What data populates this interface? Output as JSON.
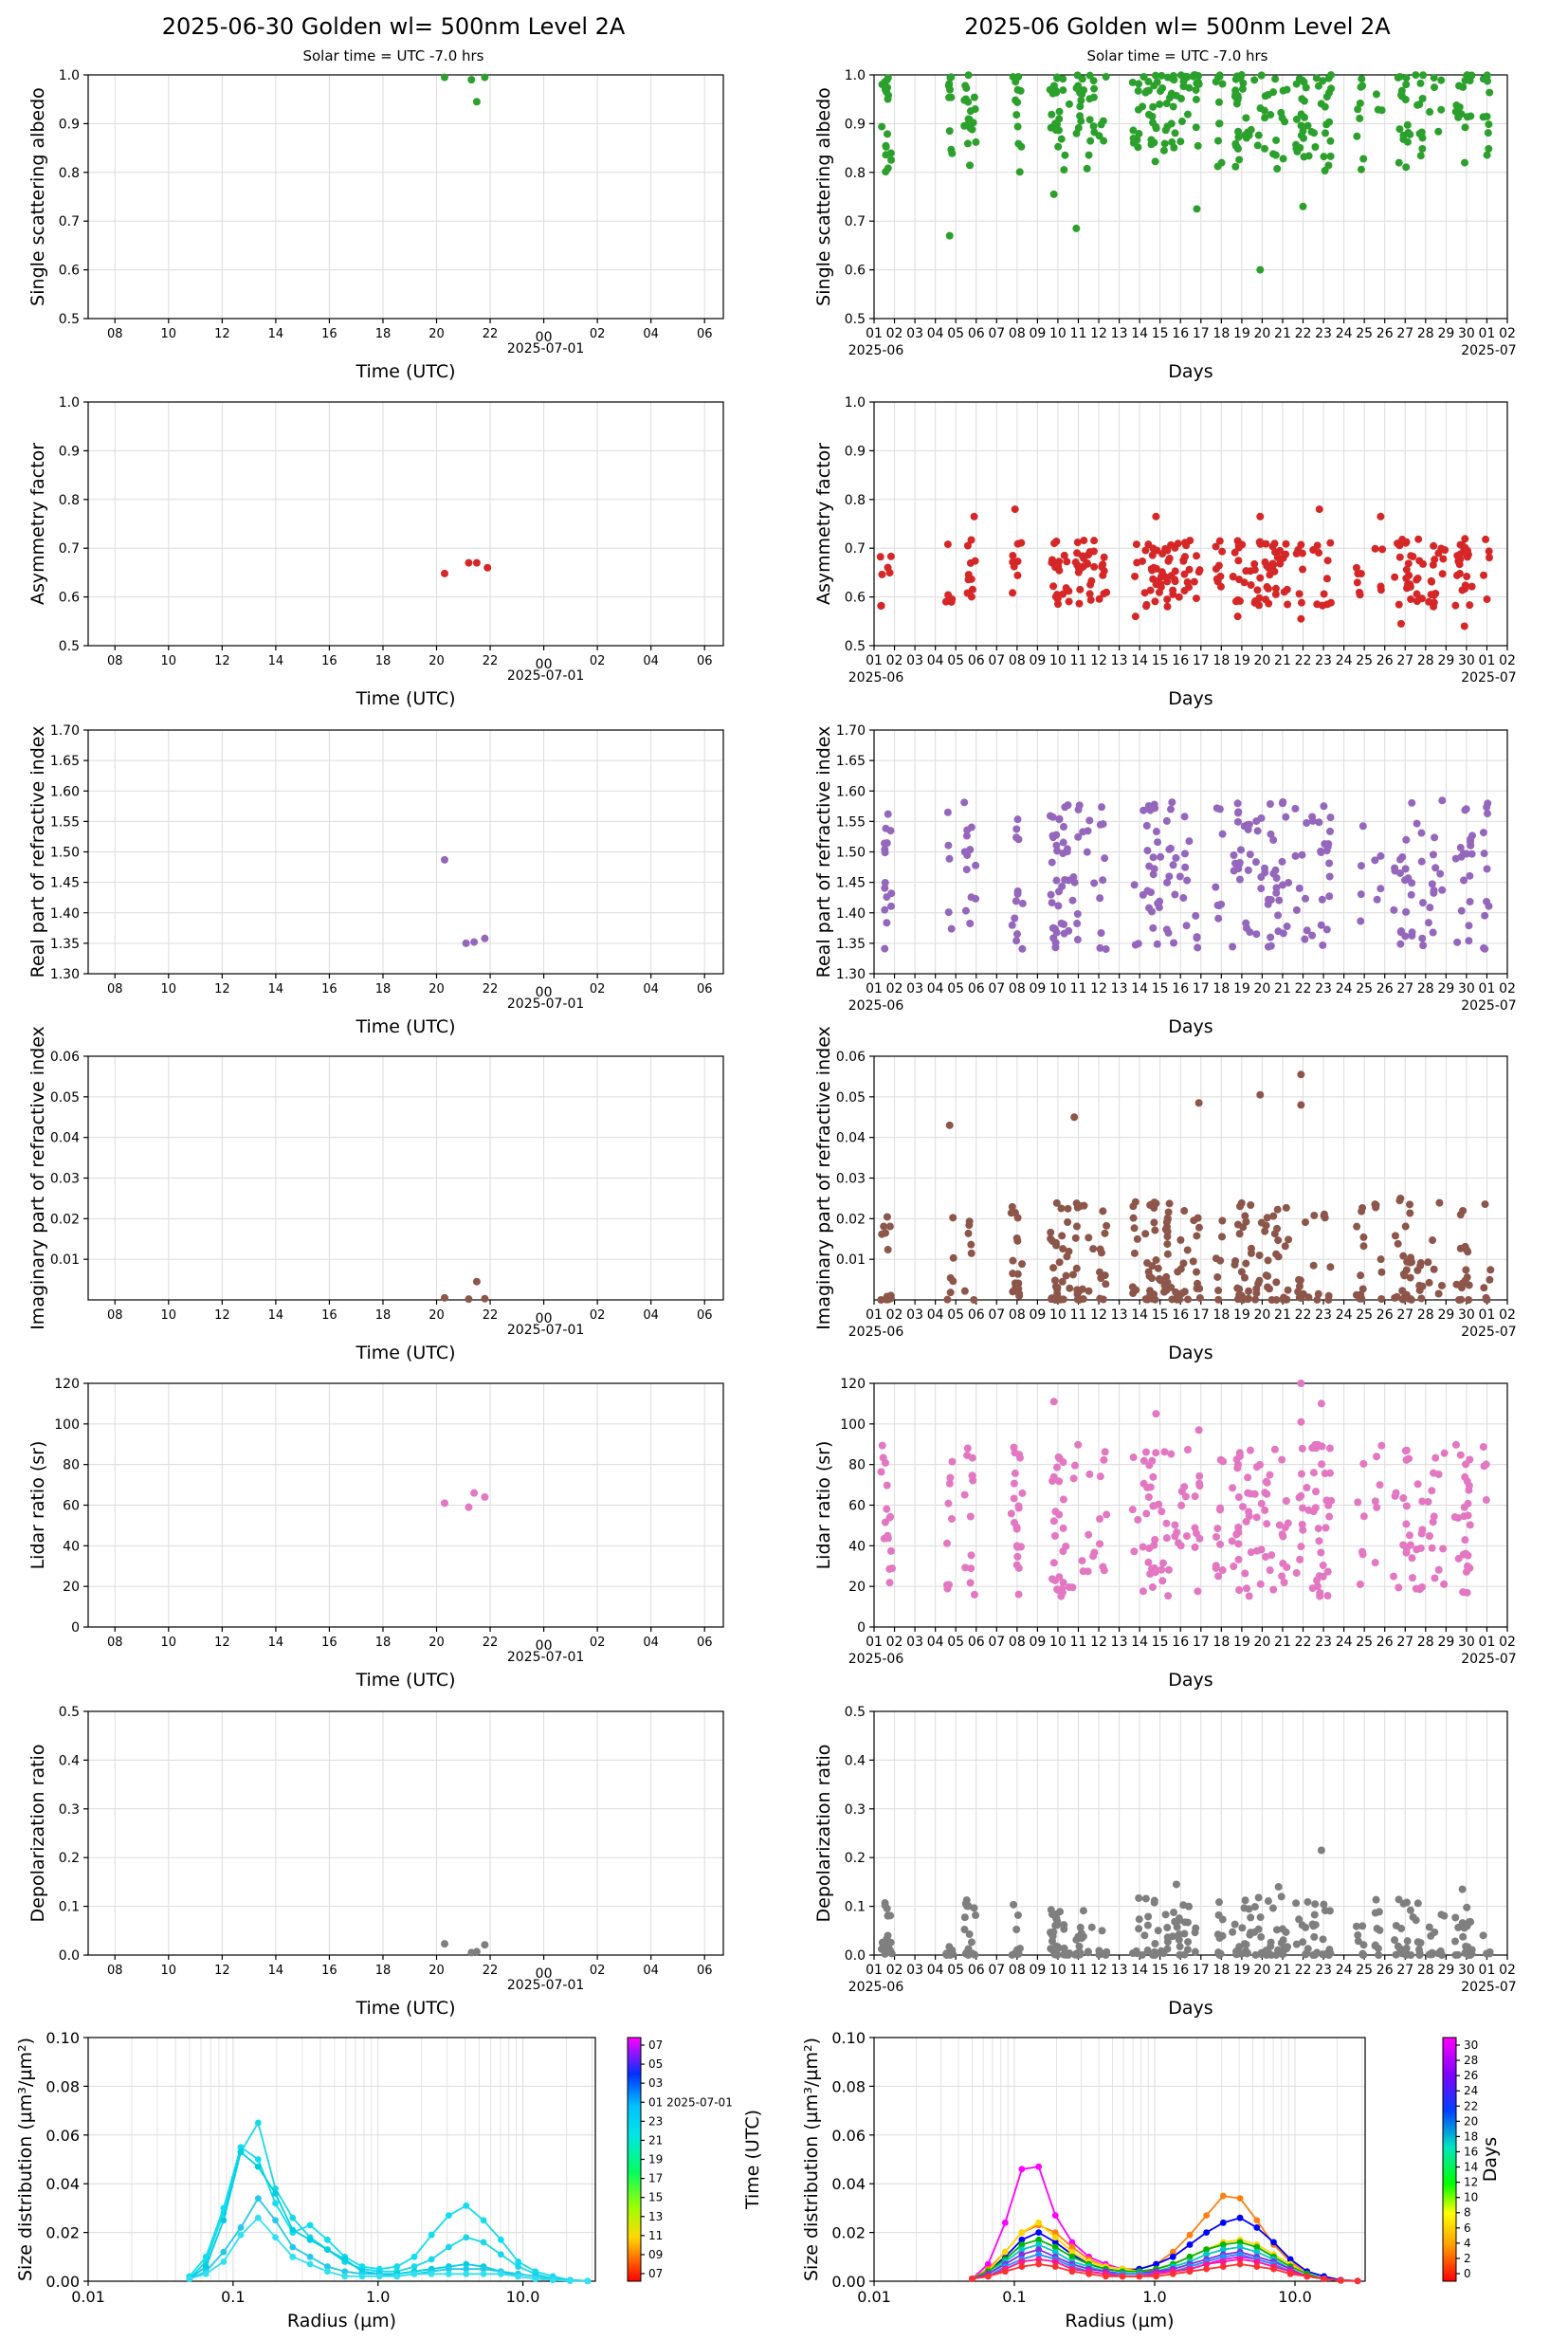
{
  "titles": {
    "left": "2025-06-30  Golden  wl= 500nm  Level 2A",
    "right": "2025-06  Golden  wl= 500nm  Level 2A",
    "left_sub": "Solar time = UTC -7.0 hrs",
    "right_sub": "Solar time = UTC -7.0 hrs"
  },
  "labels": {
    "time_xlabel": "Time (UTC)",
    "days_xlabel": "Days",
    "date_left": "2025-07-01",
    "days_start": "2025-06",
    "days_end": "2025-07",
    "sd_ylabel": "Size distribution (µm³/µm²)",
    "sd_xlabel": "Radius (µm)",
    "cb_left_label": "Time (UTC)",
    "cb_right_label": "Days"
  },
  "axes": {
    "time_ticks": [
      "08",
      "10",
      "12",
      "14",
      "18",
      "18",
      "20",
      "22",
      "00",
      "02",
      "04",
      "06"
    ],
    "day_ticks": [
      "01",
      "02",
      "03",
      "04",
      "05",
      "06",
      "07",
      "08",
      "09",
      "10",
      "11",
      "12",
      "13",
      "14",
      "15",
      "16",
      "17",
      "18",
      "19",
      "20",
      "21",
      "22",
      "23",
      "24",
      "25",
      "26",
      "27",
      "28",
      "29",
      "30",
      "01",
      "02"
    ],
    "sd_xticks": [
      "0.01",
      "0.1",
      "1.0",
      "10.0"
    ],
    "sd_yticks": [
      "0.00",
      "0.02",
      "0.04",
      "0.06",
      "0.08",
      "0.10"
    ],
    "cb_left_ticks": [
      "07",
      "05",
      "03",
      "01 2025-07-01",
      "23",
      "21",
      "19",
      "17",
      "15",
      "13",
      "11",
      "09",
      "07"
    ],
    "cb_right_ticks": [
      "30",
      "28",
      "26",
      "24",
      "22",
      "20",
      "18",
      "16",
      "14",
      "12",
      "10",
      "8",
      "6",
      "4",
      "2",
      "0"
    ]
  },
  "chart_data": [
    {
      "type": "scatter",
      "panel": "ssa",
      "ylabel": "Single scattering albedo",
      "ylim": [
        0.5,
        1.0
      ],
      "yticks": [
        "0.5",
        "0.6",
        "0.7",
        "0.8",
        "0.9",
        "1.0"
      ],
      "color": "#2ca02c",
      "daily_points": [
        [
          20.3,
          0.995
        ],
        [
          21.3,
          0.99
        ],
        [
          21.5,
          0.945
        ],
        [
          21.8,
          0.995
        ]
      ],
      "monthly_points": [
        [
          4.7,
          0.67
        ],
        [
          19.9,
          0.6
        ],
        [
          10.9,
          0.685
        ],
        [
          9.8,
          0.755
        ],
        [
          4.7,
          0.885
        ],
        [
          5.8,
          0.888
        ],
        [
          16.8,
          0.725
        ],
        [
          22.0,
          0.73
        ]
      ],
      "monthly_cluster_days": [
        1.5,
        2.5,
        4.7,
        5.7,
        8.0,
        9.0,
        9.9,
        10.4,
        10.9,
        11.5,
        12.3,
        13.8,
        14.5,
        15.0,
        15.5,
        16.0,
        16.8,
        18.0,
        18.7,
        19.2,
        19.9,
        20.5,
        21.0,
        21.9,
        22.7,
        23.3,
        24.8,
        25.7,
        26.3,
        26.9,
        27.6,
        28.3,
        28.9,
        29.7,
        30.8
      ],
      "monthly_range": [
        0.8,
        1.0
      ]
    },
    {
      "type": "scatter",
      "panel": "asym",
      "ylabel": "Asymmetry factor",
      "ylim": [
        0.5,
        1.0
      ],
      "yticks": [
        "0.5",
        "0.6",
        "0.7",
        "0.8",
        "0.9",
        "1.0"
      ],
      "color": "#d62728",
      "daily_points": [
        [
          20.3,
          0.648
        ],
        [
          21.2,
          0.67
        ],
        [
          21.5,
          0.67
        ],
        [
          21.9,
          0.66
        ]
      ],
      "monthly_range": [
        0.58,
        0.72
      ],
      "monthly_extremes": [
        [
          7.9,
          0.78
        ],
        [
          5.9,
          0.765
        ],
        [
          14.8,
          0.765
        ],
        [
          19.9,
          0.765
        ],
        [
          22.8,
          0.78
        ],
        [
          25.8,
          0.765
        ],
        [
          13.8,
          0.56
        ],
        [
          18.8,
          0.56
        ],
        [
          26.8,
          0.545
        ],
        [
          29.9,
          0.54
        ],
        [
          21.9,
          0.555
        ]
      ]
    },
    {
      "type": "scatter",
      "panel": "rri",
      "ylabel": "Real part of refractive index",
      "ylim": [
        1.3,
        1.7
      ],
      "yticks": [
        "1.30",
        "1.35",
        "1.40",
        "1.45",
        "1.50",
        "1.55",
        "1.60",
        "1.65",
        "1.70"
      ],
      "color": "#9467bd",
      "daily_points": [
        [
          20.3,
          1.487
        ],
        [
          21.1,
          1.35
        ],
        [
          21.4,
          1.352
        ],
        [
          21.8,
          1.358
        ]
      ],
      "monthly_range": [
        1.34,
        1.585
      ]
    },
    {
      "type": "scatter",
      "panel": "iri",
      "ylabel": "Imaginary part of refractive index",
      "ylim": [
        0.0,
        0.06
      ],
      "yticks": [
        "0.01",
        "0.02",
        "0.03",
        "0.04",
        "0.05",
        "0.06"
      ],
      "color": "#8c564b",
      "daily_points": [
        [
          20.3,
          0.0005
        ],
        [
          21.2,
          0.0002
        ],
        [
          21.5,
          0.0045
        ],
        [
          21.8,
          0.0003
        ]
      ],
      "monthly_extremes": [
        [
          4.7,
          0.043
        ],
        [
          16.9,
          0.0485
        ],
        [
          19.9,
          0.0505
        ],
        [
          21.9,
          0.0555
        ],
        [
          21.9,
          0.048
        ],
        [
          10.8,
          0.045
        ]
      ],
      "monthly_range": [
        0.0,
        0.025
      ]
    },
    {
      "type": "scatter",
      "panel": "lidar",
      "ylabel": "Lidar ratio (sr)",
      "ylim": [
        0,
        120
      ],
      "yticks": [
        "0",
        "20",
        "40",
        "60",
        "80",
        "100",
        "120"
      ],
      "color": "#e377c2",
      "daily_points": [
        [
          20.3,
          61
        ],
        [
          21.2,
          59
        ],
        [
          21.4,
          66
        ],
        [
          21.8,
          64
        ]
      ],
      "monthly_extremes": [
        [
          9.8,
          111
        ],
        [
          21.9,
          120
        ],
        [
          22.9,
          110
        ],
        [
          14.8,
          105
        ],
        [
          16.9,
          97
        ],
        [
          21.9,
          101
        ]
      ],
      "monthly_range": [
        15,
        90
      ]
    },
    {
      "type": "scatter",
      "panel": "depol",
      "ylabel": "Depolarization ratio",
      "ylim": [
        0.0,
        0.5
      ],
      "yticks": [
        "0.0",
        "0.1",
        "0.2",
        "0.3",
        "0.4",
        "0.5"
      ],
      "color": "#7f7f7f",
      "daily_points": [
        [
          20.3,
          0.023
        ],
        [
          21.3,
          0.005
        ],
        [
          21.5,
          0.007
        ],
        [
          21.8,
          0.021
        ]
      ],
      "monthly_extremes": [
        [
          22.9,
          0.215
        ],
        [
          15.8,
          0.145
        ],
        [
          20.8,
          0.14
        ],
        [
          29.8,
          0.135
        ]
      ],
      "monthly_range": [
        0.0,
        0.12
      ]
    },
    {
      "type": "line",
      "panel": "sd_daily",
      "xlabel": "Radius (µm)",
      "ylabel": "Size distribution (µm³/µm²)",
      "ylim": [
        0.0,
        0.1
      ],
      "xscale": "log",
      "radius": [
        0.05,
        0.065,
        0.086,
        0.113,
        0.149,
        0.196,
        0.258,
        0.34,
        0.448,
        0.59,
        0.777,
        1.024,
        1.35,
        1.78,
        2.34,
        3.08,
        4.06,
        5.35,
        7.05,
        9.28,
        12.2,
        16.1,
        21.2,
        28.0
      ],
      "series": [
        {
          "values": [
            0.001,
            0.008,
            0.028,
            0.053,
            0.065,
            0.038,
            0.026,
            0.018,
            0.013,
            0.008,
            0.005,
            0.004,
            0.004,
            0.006,
            0.009,
            0.014,
            0.018,
            0.016,
            0.011,
            0.006,
            0.003,
            0.001,
            0.0005,
            0.0001
          ],
          "color": "#19d7e6"
        },
        {
          "values": [
            0.002,
            0.01,
            0.03,
            0.055,
            0.05,
            0.032,
            0.02,
            0.023,
            0.017,
            0.01,
            0.006,
            0.005,
            0.006,
            0.01,
            0.019,
            0.027,
            0.031,
            0.025,
            0.017,
            0.008,
            0.004,
            0.002,
            0.0005,
            0.0001
          ],
          "color": "#10ddee"
        },
        {
          "values": [
            0.001,
            0.006,
            0.025,
            0.053,
            0.047,
            0.036,
            0.021,
            0.017,
            0.013,
            0.009,
            0.004,
            0.003,
            0.003,
            0.004,
            0.005,
            0.006,
            0.007,
            0.006,
            0.004,
            0.002,
            0.001,
            0.0005,
            0.0002,
            0.0001
          ],
          "color": "#00cfe0"
        },
        {
          "values": [
            0.001,
            0.004,
            0.012,
            0.022,
            0.034,
            0.025,
            0.014,
            0.01,
            0.006,
            0.004,
            0.003,
            0.003,
            0.002,
            0.003,
            0.004,
            0.005,
            0.005,
            0.005,
            0.004,
            0.003,
            0.002,
            0.001,
            0.0003,
            0.0001
          ],
          "color": "#22c9ea"
        },
        {
          "values": [
            0.001,
            0.003,
            0.008,
            0.019,
            0.026,
            0.018,
            0.01,
            0.007,
            0.004,
            0.002,
            0.002,
            0.002,
            0.002,
            0.003,
            0.003,
            0.003,
            0.003,
            0.003,
            0.003,
            0.002,
            0.001,
            0.0005,
            0.0002,
            0.0001
          ],
          "color": "#33e0f0"
        }
      ]
    },
    {
      "type": "line",
      "panel": "sd_monthly",
      "xlabel": "Radius (µm)",
      "ylabel": "Size distribution (µm³/µm²)",
      "ylim": [
        0.0,
        0.1
      ],
      "xscale": "log",
      "radius": [
        0.05,
        0.065,
        0.086,
        0.113,
        0.149,
        0.196,
        0.258,
        0.34,
        0.448,
        0.59,
        0.777,
        1.024,
        1.35,
        1.78,
        2.34,
        3.08,
        4.06,
        5.35,
        7.05,
        9.28,
        12.2,
        16.1,
        21.2,
        28.0
      ],
      "series": [
        {
          "values": [
            0.001,
            0.007,
            0.024,
            0.046,
            0.047,
            0.027,
            0.016,
            0.01,
            0.007,
            0.005,
            0.004,
            0.004,
            0.004,
            0.005,
            0.007,
            0.009,
            0.01,
            0.009,
            0.007,
            0.004,
            0.002,
            0.001,
            0.0003,
            0.0001
          ],
          "color": "#ff00ff"
        },
        {
          "values": [
            0.001,
            0.005,
            0.012,
            0.02,
            0.023,
            0.02,
            0.014,
            0.009,
            0.006,
            0.005,
            0.005,
            0.007,
            0.012,
            0.019,
            0.027,
            0.035,
            0.034,
            0.025,
            0.015,
            0.008,
            0.003,
            0.001,
            0.0003,
            0.0001
          ],
          "color": "#ff7f0e"
        },
        {
          "values": [
            0.001,
            0.004,
            0.01,
            0.017,
            0.02,
            0.016,
            0.011,
            0.007,
            0.005,
            0.004,
            0.005,
            0.007,
            0.01,
            0.015,
            0.02,
            0.024,
            0.026,
            0.022,
            0.016,
            0.009,
            0.004,
            0.002,
            0.0005,
            0.0001
          ],
          "color": "#0000ff"
        },
        {
          "values": [
            0.001,
            0.004,
            0.012,
            0.02,
            0.024,
            0.018,
            0.012,
            0.008,
            0.006,
            0.005,
            0.004,
            0.005,
            0.007,
            0.01,
            0.013,
            0.016,
            0.017,
            0.015,
            0.011,
            0.007,
            0.003,
            0.001,
            0.0003,
            0.0001
          ],
          "color": "#ffd700"
        },
        {
          "values": [
            0.001,
            0.004,
            0.009,
            0.015,
            0.017,
            0.014,
            0.01,
            0.007,
            0.005,
            0.004,
            0.004,
            0.005,
            0.007,
            0.01,
            0.013,
            0.015,
            0.016,
            0.014,
            0.01,
            0.006,
            0.003,
            0.001,
            0.0003,
            0.0001
          ],
          "color": "#00b400"
        },
        {
          "values": [
            0.001,
            0.003,
            0.008,
            0.013,
            0.015,
            0.012,
            0.008,
            0.006,
            0.004,
            0.003,
            0.003,
            0.004,
            0.006,
            0.008,
            0.011,
            0.013,
            0.014,
            0.012,
            0.009,
            0.005,
            0.002,
            0.001,
            0.0003,
            0.0001
          ],
          "color": "#00c8c8"
        },
        {
          "values": [
            0.001,
            0.003,
            0.007,
            0.011,
            0.013,
            0.01,
            0.007,
            0.005,
            0.004,
            0.003,
            0.003,
            0.004,
            0.005,
            0.007,
            0.009,
            0.011,
            0.012,
            0.01,
            0.008,
            0.005,
            0.002,
            0.001,
            0.0003,
            0.0001
          ],
          "color": "#8a2be2"
        },
        {
          "values": [
            0.001,
            0.002,
            0.006,
            0.009,
            0.011,
            0.009,
            0.006,
            0.004,
            0.003,
            0.003,
            0.003,
            0.003,
            0.004,
            0.006,
            0.008,
            0.01,
            0.011,
            0.009,
            0.007,
            0.004,
            0.002,
            0.001,
            0.0003,
            0.0001
          ],
          "color": "#1e90ff"
        },
        {
          "values": [
            0.001,
            0.002,
            0.005,
            0.008,
            0.009,
            0.008,
            0.005,
            0.004,
            0.003,
            0.002,
            0.002,
            0.003,
            0.004,
            0.005,
            0.007,
            0.008,
            0.009,
            0.008,
            0.006,
            0.004,
            0.002,
            0.001,
            0.0003,
            0.0001
          ],
          "color": "#ff1493"
        },
        {
          "values": [
            0.001,
            0.002,
            0.004,
            0.006,
            0.007,
            0.006,
            0.004,
            0.003,
            0.002,
            0.002,
            0.002,
            0.002,
            0.003,
            0.004,
            0.005,
            0.006,
            0.007,
            0.006,
            0.005,
            0.003,
            0.002,
            0.001,
            0.0003,
            0.0001
          ],
          "color": "#ff3030"
        }
      ]
    }
  ]
}
